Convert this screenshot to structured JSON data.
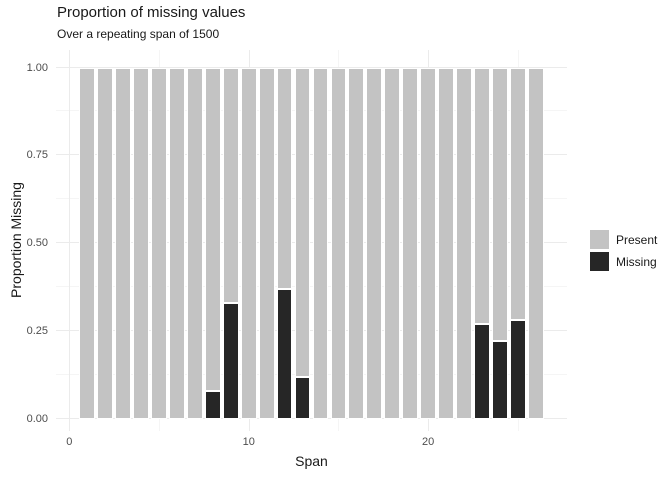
{
  "chart_data": {
    "type": "bar",
    "stacked": true,
    "title": "Proportion of missing values",
    "subtitle": "Over a repeating span of 1500",
    "xlabel": "Span",
    "ylabel": "Proportion Missing",
    "x": [
      1,
      2,
      3,
      4,
      5,
      6,
      7,
      8,
      9,
      10,
      11,
      12,
      13,
      14,
      15,
      16,
      17,
      18,
      19,
      20,
      21,
      22,
      23,
      24,
      25,
      26
    ],
    "series": [
      {
        "name": "Present",
        "color": "#C3C3C3",
        "values": [
          1,
          1,
          1,
          1,
          1,
          1,
          1,
          0.92,
          0.67,
          1,
          1,
          0.63,
          0.88,
          1,
          1,
          1,
          1,
          1,
          1,
          1,
          1,
          1,
          0.73,
          0.78,
          0.72,
          1
        ]
      },
      {
        "name": "Missing",
        "color": "#262626",
        "values": [
          0,
          0,
          0,
          0,
          0,
          0,
          0,
          0.08,
          0.33,
          0,
          0,
          0.37,
          0.12,
          0,
          0,
          0,
          0,
          0,
          0,
          0,
          0,
          0,
          0.27,
          0.22,
          0.28,
          0
        ]
      }
    ],
    "stack_bottom_to_top": [
      "Missing",
      "Present"
    ],
    "bar_width": 0.875,
    "xlim": [
      -0.745,
      27.745
    ],
    "ylim": [
      -0.035,
      1.05
    ],
    "x_axis": {
      "major_gridlines": [
        0,
        10,
        20
      ],
      "minor_gridlines": [
        5,
        15,
        25
      ],
      "tick_labels": [
        {
          "value": 0,
          "label": "0"
        },
        {
          "value": 10,
          "label": "10"
        },
        {
          "value": 20,
          "label": "20"
        }
      ]
    },
    "y_axis": {
      "major_gridlines": [
        0,
        0.25,
        0.5,
        0.75,
        1
      ],
      "minor_gridlines": [
        0.125,
        0.375,
        0.625,
        0.875
      ],
      "tick_labels": [
        {
          "value": 0,
          "label": "0.00"
        },
        {
          "value": 0.25,
          "label": "0.25"
        },
        {
          "value": 0.5,
          "label": "0.50"
        },
        {
          "value": 0.75,
          "label": "0.75"
        },
        {
          "value": 1,
          "label": "1.00"
        }
      ]
    },
    "grid": true,
    "legend_position": "right"
  },
  "style": {
    "background": "#FFFFFF",
    "major_gridline_color": "#EBEBEB",
    "minor_gridline_color": "#F5F5F5",
    "axis_text_color": "#4D4D4D",
    "title_text_color": "#191919",
    "bar_border_color": "#FFFFFF"
  }
}
